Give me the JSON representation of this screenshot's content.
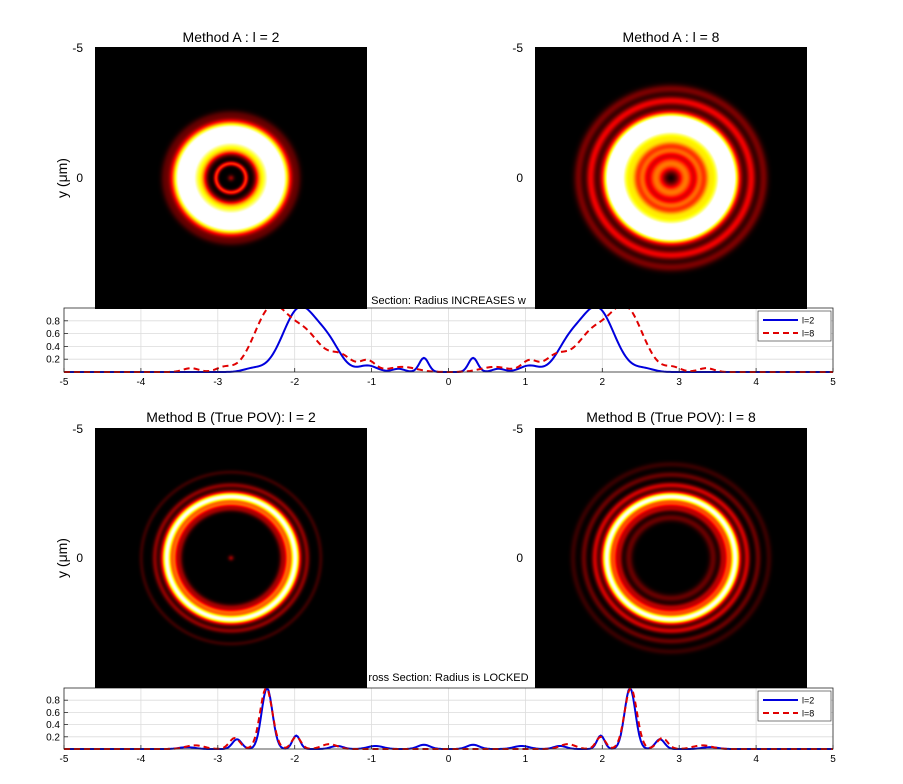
{
  "chart_data": [
    {
      "type": "heatmap",
      "title": "Method A : l = 2",
      "ylabel": "y ($\\mu$m)",
      "ytick_labels": [
        "-5",
        "0"
      ],
      "colormap": "hot",
      "rings": [
        {
          "r": 0.0,
          "w": 0.08,
          "a": 0.22
        },
        {
          "r": 0.55,
          "w": 0.06,
          "a": 0.45
        },
        {
          "r": 1.05,
          "w": 0.12,
          "a": 0.35
        },
        {
          "r": 1.4,
          "w": 0.22,
          "a": 0.95
        },
        {
          "r": 1.88,
          "w": 0.22,
          "a": 1.0
        },
        {
          "r": 2.45,
          "w": 0.1,
          "a": 0.1
        }
      ]
    },
    {
      "type": "heatmap",
      "title": "Method A : l = 8",
      "ylabel": "",
      "ytick_labels": [
        "-5",
        "0"
      ],
      "colormap": "hot",
      "rings": [
        {
          "r": 0.55,
          "w": 0.22,
          "a": 0.55
        },
        {
          "r": 1.05,
          "w": 0.12,
          "a": 0.45
        },
        {
          "r": 1.4,
          "w": 0.15,
          "a": 0.55
        },
        {
          "r": 1.85,
          "w": 0.22,
          "a": 1.0
        },
        {
          "r": 2.25,
          "w": 0.2,
          "a": 1.0
        },
        {
          "r": 2.95,
          "w": 0.12,
          "a": 0.35
        },
        {
          "r": 3.4,
          "w": 0.12,
          "a": 0.18
        }
      ]
    },
    {
      "type": "line",
      "title": "Section: Radius INCREASES w",
      "xlim": [
        -5,
        5
      ],
      "ylim": [
        0,
        1
      ],
      "x_ticks": [
        -5,
        -4,
        -3,
        -2,
        -1,
        0,
        1,
        2,
        3,
        4,
        5
      ],
      "y_ticks": [
        0.2,
        0.4,
        0.6,
        0.8
      ],
      "y_tick_labels": [
        "0.2",
        "0.4",
        "0.6",
        "0.8"
      ],
      "grid": true,
      "legend_position": "top-right",
      "series": [
        {
          "name": "l=2",
          "color": "#0000dd",
          "dashed": false,
          "peaks": [
            {
              "c": 1.93,
              "w": 0.22,
              "a": 1.0
            },
            {
              "c": 1.55,
              "w": 0.16,
              "a": 0.35
            },
            {
              "c": 1.05,
              "w": 0.12,
              "a": 0.1
            },
            {
              "c": 0.65,
              "w": 0.08,
              "a": 0.05
            },
            {
              "c": 0.32,
              "w": 0.06,
              "a": 0.22
            },
            {
              "c": 2.55,
              "w": 0.12,
              "a": 0.05
            }
          ]
        },
        {
          "name": "l=8",
          "color": "#e00000",
          "dashed": true,
          "peaks": [
            {
              "c": 2.3,
              "w": 0.22,
              "a": 1.0
            },
            {
              "c": 1.85,
              "w": 0.2,
              "a": 0.55
            },
            {
              "c": 1.4,
              "w": 0.15,
              "a": 0.25
            },
            {
              "c": 1.05,
              "w": 0.1,
              "a": 0.17
            },
            {
              "c": 0.6,
              "w": 0.18,
              "a": 0.08
            },
            {
              "c": 2.92,
              "w": 0.1,
              "a": 0.07
            },
            {
              "c": 3.35,
              "w": 0.1,
              "a": 0.06
            }
          ]
        }
      ]
    },
    {
      "type": "heatmap",
      "title": "Method B (True POV): l = 2",
      "ylabel": "y ($\\mu$m)",
      "ytick_labels": [
        "-5",
        "0"
      ],
      "colormap": "hot",
      "rings": [
        {
          "r": 0.0,
          "w": 0.07,
          "a": 0.22
        },
        {
          "r": 1.9,
          "w": 0.08,
          "a": 0.22
        },
        {
          "r": 2.08,
          "w": 0.07,
          "a": 0.4
        },
        {
          "r": 2.36,
          "w": 0.13,
          "a": 1.0
        },
        {
          "r": 2.8,
          "w": 0.07,
          "a": 0.2
        },
        {
          "r": 3.3,
          "w": 0.06,
          "a": 0.08
        }
      ]
    },
    {
      "type": "heatmap",
      "title": "Method B (True POV): l = 8",
      "ylabel": "",
      "ytick_labels": [
        "-5",
        "0"
      ],
      "colormap": "hot",
      "rings": [
        {
          "r": 1.55,
          "w": 0.1,
          "a": 0.15
        },
        {
          "r": 1.9,
          "w": 0.08,
          "a": 0.25
        },
        {
          "r": 2.08,
          "w": 0.07,
          "a": 0.35
        },
        {
          "r": 2.36,
          "w": 0.13,
          "a": 1.0
        },
        {
          "r": 2.8,
          "w": 0.08,
          "a": 0.3
        },
        {
          "r": 3.2,
          "w": 0.08,
          "a": 0.15
        },
        {
          "r": 3.6,
          "w": 0.08,
          "a": 0.08
        }
      ]
    },
    {
      "type": "line",
      "title": "ross Section: Radius is LOCKED",
      "xlim": [
        -5,
        5
      ],
      "ylim": [
        0,
        1
      ],
      "x_ticks": [
        -5,
        -4,
        -3,
        -2,
        -1,
        0,
        1,
        2,
        3,
        4,
        5
      ],
      "y_ticks": [
        0.2,
        0.4,
        0.6,
        0.8
      ],
      "y_tick_labels": [
        "0.2",
        "0.4",
        "0.6",
        "0.8"
      ],
      "grid": true,
      "legend_position": "top-right",
      "series": [
        {
          "name": "l=2",
          "color": "#0000dd",
          "dashed": false,
          "peaks": [
            {
              "c": 2.36,
              "w": 0.07,
              "a": 1.0
            },
            {
              "c": 2.75,
              "w": 0.06,
              "a": 0.16
            },
            {
              "c": 1.98,
              "w": 0.05,
              "a": 0.22
            },
            {
              "c": 1.45,
              "w": 0.08,
              "a": 0.05
            },
            {
              "c": 0.95,
              "w": 0.1,
              "a": 0.05
            },
            {
              "c": 0.32,
              "w": 0.08,
              "a": 0.07
            },
            {
              "c": 3.4,
              "w": 0.1,
              "a": 0.03
            }
          ]
        },
        {
          "name": "l=8",
          "color": "#e00000",
          "dashed": true,
          "peaks": [
            {
              "c": 2.37,
              "w": 0.08,
              "a": 1.0
            },
            {
              "c": 2.78,
              "w": 0.07,
              "a": 0.18
            },
            {
              "c": 1.98,
              "w": 0.06,
              "a": 0.2
            },
            {
              "c": 1.55,
              "w": 0.1,
              "a": 0.08
            },
            {
              "c": 3.3,
              "w": 0.12,
              "a": 0.06
            }
          ]
        }
      ]
    }
  ]
}
